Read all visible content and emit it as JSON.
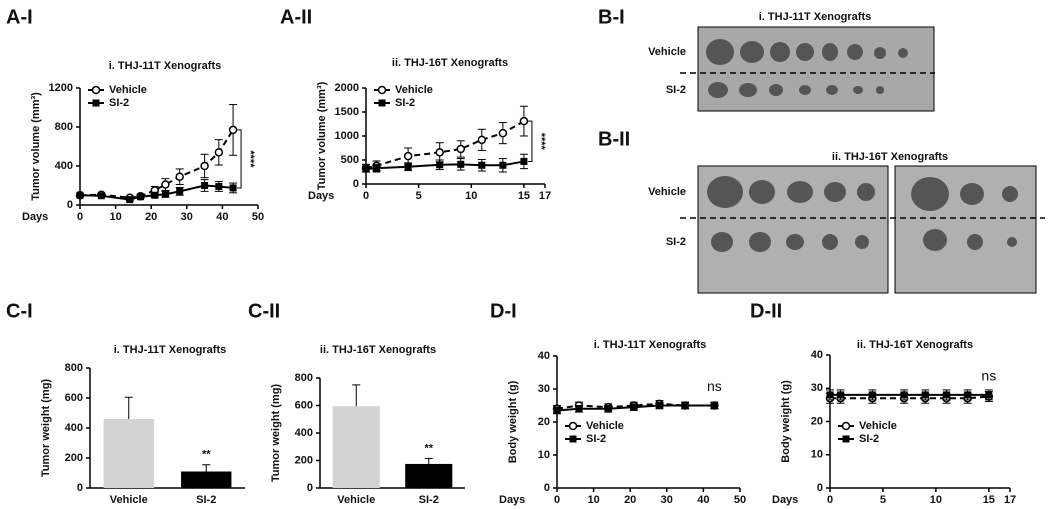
{
  "chart_data": [
    {
      "type": "line",
      "panel": "A-I",
      "title": "i. THJ-11T Xenografts",
      "y_label": "Tumor volume (mm³)",
      "x_label": "Days",
      "x": [
        0,
        6,
        14,
        17,
        21,
        24,
        28,
        35,
        39,
        43
      ],
      "series": [
        {
          "name": "Vehicle",
          "color": "#000000",
          "dash": true,
          "marker": "open-circle",
          "values": [
            100,
            105,
            75,
            90,
            150,
            210,
            290,
            400,
            540,
            770
          ],
          "errors": [
            10,
            10,
            10,
            15,
            40,
            60,
            80,
            120,
            130,
            260
          ]
        },
        {
          "name": "SI-2",
          "color": "#000000",
          "dash": false,
          "marker": "filled-square",
          "values": [
            100,
            95,
            55,
            85,
            100,
            110,
            140,
            200,
            190,
            175
          ],
          "errors": [
            10,
            10,
            10,
            15,
            20,
            30,
            40,
            60,
            50,
            50
          ]
        }
      ],
      "xlim": [
        0,
        50
      ],
      "xticks": [
        0,
        10,
        20,
        30,
        40,
        50
      ],
      "ylim": [
        0,
        1200
      ],
      "yticks": [
        0,
        400,
        800,
        1200
      ],
      "legend": "upper left",
      "annotation": "****",
      "bracket": true
    },
    {
      "type": "line",
      "panel": "A-II",
      "title": "ii. THJ-16T Xenografts",
      "y_label": "Tumor volume (mm³)",
      "x_label": "Days",
      "x": [
        0,
        1,
        4,
        7,
        9,
        11,
        13,
        15
      ],
      "series": [
        {
          "name": "Vehicle",
          "color": "#000000",
          "dash": true,
          "marker": "open-circle",
          "values": [
            330,
            380,
            580,
            660,
            730,
            920,
            1060,
            1310
          ],
          "errors": [
            80,
            100,
            170,
            200,
            170,
            220,
            220,
            310
          ]
        },
        {
          "name": "SI-2",
          "color": "#000000",
          "dash": false,
          "marker": "filled-square",
          "values": [
            310,
            330,
            360,
            400,
            410,
            390,
            390,
            470
          ],
          "errors": [
            60,
            80,
            80,
            100,
            120,
            120,
            140,
            150
          ]
        }
      ],
      "xlim": [
        0,
        17
      ],
      "xticks": [
        0,
        5,
        10,
        15,
        17
      ],
      "ylim": [
        0,
        2000
      ],
      "yticks": [
        0,
        500,
        1000,
        1500,
        2000
      ],
      "legend": "upper left",
      "annotation": "****",
      "bracket": true
    },
    {
      "type": "bar",
      "panel": "C-I",
      "title": "i. THJ-11T Xenografts",
      "y_label": "Tumor weight (mg)",
      "categories": [
        "Vehicle",
        "SI-2"
      ],
      "values": [
        460,
        110
      ],
      "errors": [
        145,
        45
      ],
      "colors": [
        "#d3d3d3",
        "#000000"
      ],
      "ylim": [
        0,
        800
      ],
      "yticks": [
        0,
        200,
        400,
        600,
        800
      ],
      "annotation": "**"
    },
    {
      "type": "bar",
      "panel": "C-II",
      "title": "ii. THJ-16T Xenografts",
      "y_label": "Tumor weight (mg)",
      "categories": [
        "Vehicle",
        "SI-2"
      ],
      "values": [
        595,
        175
      ],
      "errors": [
        155,
        40
      ],
      "colors": [
        "#d3d3d3",
        "#000000"
      ],
      "ylim": [
        0,
        800
      ],
      "yticks": [
        0,
        200,
        400,
        600,
        800
      ],
      "annotation": "**"
    },
    {
      "type": "line",
      "panel": "D-I",
      "title": "i. THJ-11T Xenografts",
      "y_label": "Body weight (g)",
      "x_label": "Days",
      "x": [
        0,
        6,
        14,
        21,
        28,
        35,
        43
      ],
      "series": [
        {
          "name": "Vehicle",
          "color": "#000000",
          "dash": true,
          "marker": "open-circle",
          "values": [
            24,
            25,
            24.5,
            25,
            25.5,
            25,
            25
          ],
          "errors": [
            1,
            1,
            1,
            1,
            1,
            1,
            1
          ]
        },
        {
          "name": "SI-2",
          "color": "#000000",
          "dash": false,
          "marker": "filled-square",
          "values": [
            23.5,
            24,
            24,
            24.5,
            25,
            25,
            25
          ],
          "errors": [
            1,
            1,
            1,
            1,
            1,
            1,
            1
          ]
        }
      ],
      "xlim": [
        0,
        50
      ],
      "xticks": [
        0,
        10,
        20,
        30,
        40,
        50
      ],
      "ylim": [
        0,
        40
      ],
      "yticks": [
        0,
        10,
        20,
        30,
        40
      ],
      "legend": "lower left",
      "annotation": "ns",
      "bracket": false
    },
    {
      "type": "line",
      "panel": "D-II",
      "title": "ii. THJ-16T Xenografts",
      "y_label": "Body weight (g)",
      "x_label": "Days",
      "x": [
        0,
        1,
        4,
        7,
        9,
        11,
        13,
        15
      ],
      "series": [
        {
          "name": "Vehicle",
          "color": "#000000",
          "dash": true,
          "marker": "open-circle",
          "values": [
            27,
            27,
            27,
            27,
            27,
            27,
            27,
            27.5
          ],
          "errors": [
            1.5,
            1.5,
            1.5,
            1.5,
            1.5,
            1.5,
            1.5,
            1.5
          ]
        },
        {
          "name": "SI-2",
          "color": "#000000",
          "dash": false,
          "marker": "filled-square",
          "values": [
            28,
            28,
            28,
            28,
            28,
            28,
            28,
            28
          ],
          "errors": [
            1.5,
            1.5,
            1.5,
            1.5,
            1.5,
            1.5,
            1.5,
            1.5
          ]
        }
      ],
      "xlim": [
        0,
        17
      ],
      "xticks": [
        0,
        5,
        10,
        15,
        17
      ],
      "ylim": [
        0,
        40
      ],
      "yticks": [
        0,
        10,
        20,
        30,
        40
      ],
      "legend": "lower left",
      "annotation": "ns",
      "bracket": false
    }
  ],
  "photos": [
    {
      "panel": "B-I",
      "title": "i. THJ-11T Xenografts",
      "rows": [
        "Vehicle",
        "SI-2"
      ]
    },
    {
      "panel": "B-II",
      "title": "ii. THJ-16T Xenografts",
      "rows": [
        "Vehicle",
        "SI-2"
      ]
    }
  ]
}
